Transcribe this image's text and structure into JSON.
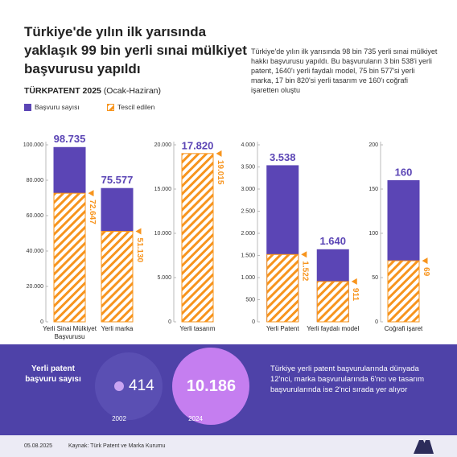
{
  "title": "Türkiye'de yılın ilk yarısında yaklaşık 99 bin yerli sınai mülkiyet başvurusu yapıldı",
  "description": "Türkiye'de yılın ilk yarısında 98 bin 735 yerli sınai mülkiyet hakkı başvurusu yapıldı. Bu başvuruların 3 bin 538'i yerli patent, 1640'ı yerli faydalı model, 75 bin 577'si yerli marka, 17 bin 820'si yerli tasarım ve 160'ı coğrafi işaretten oluştu",
  "subtitle": {
    "source": "TÜRKPATENT 2025",
    "period": "(Ocak-Haziran)"
  },
  "chart_data": [
    {
      "type": "bar",
      "categories": [
        "Yerli Sinai Mülkiyet Başvurusu",
        "Yerli marka"
      ],
      "series": [
        {
          "name": "Başvuru sayısı",
          "color": "#5b45b5",
          "values": [
            98735,
            75577
          ],
          "value_labels": [
            "98.735",
            "75.577"
          ]
        },
        {
          "name": "Tescil edilen",
          "color": "#f7941d",
          "values": [
            72647,
            51130
          ],
          "value_labels": [
            "72.647",
            "51.130"
          ]
        }
      ],
      "ylim": [
        0,
        100000
      ],
      "yticks": [
        0,
        {
          "value": 20000,
          "label": "20.000"
        },
        {
          "value": 40000,
          "label": "40.000"
        },
        {
          "value": 60000,
          "label": "60.000"
        },
        {
          "value": 80000,
          "label": "80.000"
        },
        {
          "value": 100000,
          "label": "100.000"
        }
      ]
    },
    {
      "type": "bar",
      "categories": [
        "Yerli tasarım"
      ],
      "series": [
        {
          "name": "Başvuru sayısı",
          "color": "#5b45b5",
          "values": [
            17820
          ],
          "value_labels": [
            "17.820"
          ]
        },
        {
          "name": "Tescil edilen",
          "color": "#f7941d",
          "values": [
            19015
          ],
          "value_labels": [
            "19.015"
          ]
        }
      ],
      "ylim": [
        0,
        20000
      ],
      "yticks": [
        0,
        {
          "value": 5000,
          "label": "5.000"
        },
        {
          "value": 10000,
          "label": "10.000"
        },
        {
          "value": 15000,
          "label": "15.000"
        },
        {
          "value": 20000,
          "label": "20.000"
        }
      ]
    },
    {
      "type": "bar",
      "categories": [
        "Yerli Patent",
        "Yerli faydalı model"
      ],
      "series": [
        {
          "name": "Başvuru sayısı",
          "color": "#5b45b5",
          "values": [
            3538,
            1640
          ],
          "value_labels": [
            "3.538",
            "1.640"
          ]
        },
        {
          "name": "Tescil edilen",
          "color": "#f7941d",
          "values": [
            1522,
            911
          ],
          "value_labels": [
            "1.522",
            "911"
          ]
        }
      ],
      "ylim": [
        0,
        4000
      ],
      "yticks": [
        0,
        500,
        {
          "value": 1000,
          "label": "1.000"
        },
        {
          "value": 1500,
          "label": "1.500"
        },
        {
          "value": 2000,
          "label": "2.000"
        },
        {
          "value": 2500,
          "label": "2.500"
        },
        {
          "value": 3000,
          "label": "3.000"
        },
        {
          "value": 3500,
          "label": "3.500"
        },
        {
          "value": 4000,
          "label": "4.000"
        }
      ]
    },
    {
      "type": "bar",
      "categories": [
        "Coğrafi işaret"
      ],
      "series": [
        {
          "name": "Başvuru sayısı",
          "color": "#5b45b5",
          "values": [
            160
          ],
          "value_labels": [
            "160"
          ]
        },
        {
          "name": "Tescil edilen",
          "color": "#f7941d",
          "values": [
            69
          ],
          "value_labels": [
            "69"
          ]
        }
      ],
      "ylim": [
        0,
        200
      ],
      "yticks": [
        0,
        50,
        100,
        150,
        200
      ]
    }
  ],
  "bubbles": {
    "caption": "Yerli patent başvuru sayısı",
    "items": [
      {
        "value": "414",
        "year": "2002"
      },
      {
        "value": "10.186",
        "year": "2024"
      }
    ]
  },
  "note": "Türkiye yerli patent başvurularında dünyada 12'nci, marka başvurularında 6'ncı ve tasarım başvurularında ise 2'nci sırada yer alıyor",
  "footer": {
    "date": "05.08.2025",
    "source": "Kaynak: Türk Patent ve Marka Kurumu"
  }
}
